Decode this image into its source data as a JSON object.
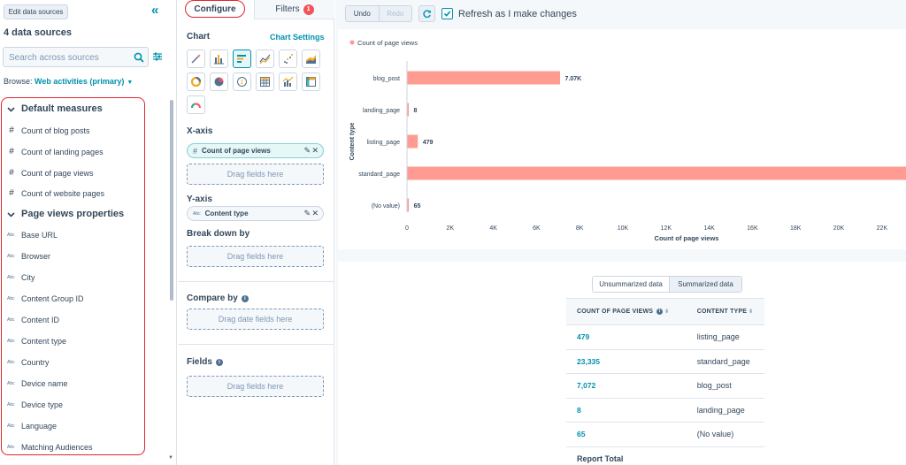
{
  "left": {
    "edit_button": "Edit data sources",
    "title": "4 data sources",
    "search_placeholder": "Search across sources",
    "browse_label": "Browse:",
    "browse_value": "Web activities (primary)",
    "groups": [
      {
        "label": "Default measures",
        "items": [
          "Count of blog posts",
          "Count of landing pages",
          "Count of page views",
          "Count of website pages"
        ]
      },
      {
        "label": "Page views properties",
        "items": [
          "Base URL",
          "Browser",
          "City",
          "Content Group ID",
          "Content ID",
          "Content type",
          "Country",
          "Device name",
          "Device type",
          "Language",
          "Matching Audiences"
        ]
      }
    ],
    "abc_icon": "Abc",
    "num_icon": "#"
  },
  "middle": {
    "tab_configure": "Configure",
    "tab_filters": "Filters",
    "filters_badge": "1",
    "chart_label": "Chart",
    "chart_settings": "Chart Settings",
    "chart_types": [
      "wand-icon",
      "column-icon",
      "bar-icon",
      "line-icon",
      "scatter-icon",
      "area-icon",
      "donut-icon",
      "pie-icon",
      "kpi-icon",
      "table-icon",
      "combo-icon",
      "pivot-icon",
      "gauge-icon"
    ],
    "x_axis_label": "X-axis",
    "x_axis_field": "Count of page views",
    "y_axis_label": "Y-axis",
    "y_axis_field": "Content type",
    "break_down_label": "Break down by",
    "drag_fields": "Drag fields here",
    "compare_label": "Compare by",
    "drag_date_fields": "Drag date fields here",
    "fields_label": "Fields"
  },
  "right": {
    "undo": "Undo",
    "redo": "Redo",
    "refresh_label": "Refresh as I make changes",
    "colors": {
      "bar": "#ff9b91",
      "accent": "#0091ae",
      "active_outline": "#e0262f"
    },
    "toggle": [
      "Unsummarized data",
      "Summarized data"
    ],
    "table": {
      "headers": [
        "COUNT OF PAGE VIEWS",
        "CONTENT TYPE"
      ],
      "rows": [
        [
          "479",
          "listing_page"
        ],
        [
          "23,335",
          "standard_page"
        ],
        [
          "7,072",
          "blog_post"
        ],
        [
          "8",
          "landing_page"
        ],
        [
          "65",
          "(No value)"
        ]
      ],
      "total_label": "Report Total"
    }
  },
  "chart_data": {
    "type": "bar",
    "orientation": "horizontal",
    "categories": [
      "blog_post",
      "landing_page",
      "listing_page",
      "standard_page",
      "(No value)"
    ],
    "series": [
      {
        "name": "Count of page views",
        "values": [
          7072,
          8,
          479,
          23335,
          65
        ]
      }
    ],
    "data_labels": [
      "7.07K",
      "8",
      "479",
      "",
      "65"
    ],
    "x_ticks": [
      "0",
      "2K",
      "4K",
      "6K",
      "8K",
      "10K",
      "12K",
      "14K",
      "16K",
      "18K",
      "20K",
      "22K"
    ],
    "xlabel": "Count of page views",
    "ylabel": "Content type",
    "xlim": [
      0,
      23335
    ],
    "legend": "top-left",
    "grid": false
  }
}
